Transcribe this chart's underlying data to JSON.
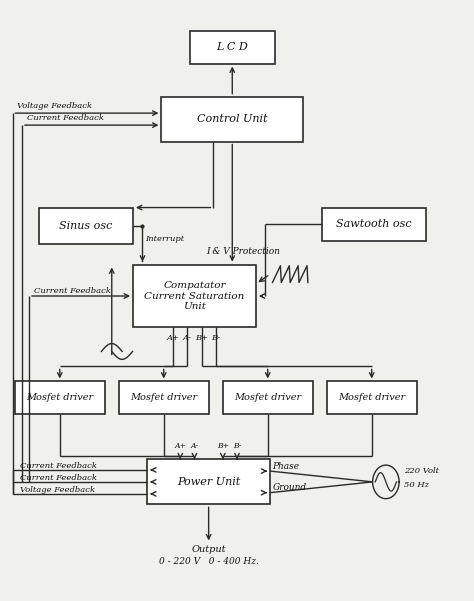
{
  "bg_color": "#f0f0ec",
  "box_color": "#ffffff",
  "line_color": "#2a2a2a",
  "text_color": "#111111",
  "figsize": [
    4.74,
    6.01
  ],
  "dpi": 100,
  "boxes": {
    "lcd": [
      0.4,
      0.895,
      0.18,
      0.055
    ],
    "control": [
      0.34,
      0.765,
      0.3,
      0.075
    ],
    "sinus": [
      0.08,
      0.595,
      0.2,
      0.06
    ],
    "comparator": [
      0.28,
      0.455,
      0.26,
      0.105
    ],
    "sawtooth": [
      0.68,
      0.6,
      0.22,
      0.055
    ],
    "mosfet1": [
      0.03,
      0.31,
      0.19,
      0.055
    ],
    "mosfet2": [
      0.25,
      0.31,
      0.19,
      0.055
    ],
    "mosfet3": [
      0.47,
      0.31,
      0.19,
      0.055
    ],
    "mosfet4": [
      0.69,
      0.31,
      0.19,
      0.055
    ],
    "power": [
      0.31,
      0.16,
      0.26,
      0.075
    ]
  },
  "box_labels": {
    "lcd": "L C D",
    "control": "Control Unit",
    "sinus": "Sinus osc",
    "comparator": "Compatator\nCurrent Saturation\nUnit",
    "sawtooth": "Sawtooth osc",
    "mosfet1": "Mosfet driver",
    "mosfet2": "Mosfet driver",
    "mosfet3": "Mosfet driver",
    "mosfet4": "Mosfet driver",
    "power": "Power Unit"
  }
}
